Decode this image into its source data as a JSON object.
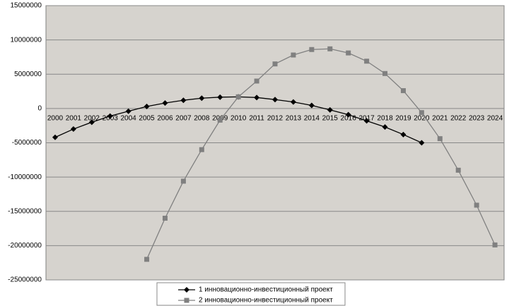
{
  "chart_data": {
    "type": "line",
    "categories": [
      "2000",
      "2001",
      "2002",
      "2003",
      "2004",
      "2005",
      "2006",
      "2007",
      "2008",
      "2009",
      "2010",
      "2011",
      "2012",
      "2013",
      "2014",
      "2015",
      "2016",
      "2017",
      "2018",
      "2019",
      "2020",
      "2021",
      "2022",
      "2023",
      "2024"
    ],
    "series": [
      {
        "name": "1 инновационно-инвестиционный проект",
        "color": "#000000",
        "marker": "diamond",
        "values": [
          -4200000,
          -3000000,
          -2000000,
          -1100000,
          -400000,
          300000,
          800000,
          1200000,
          1500000,
          1650000,
          1700000,
          1600000,
          1300000,
          950000,
          450000,
          -200000,
          -900000,
          -1800000,
          -2700000,
          -3800000,
          -5000000,
          null,
          null,
          null,
          null
        ]
      },
      {
        "name": "2 инновационно-инвестиционный проект",
        "color": "#808080",
        "marker": "square",
        "values": [
          null,
          null,
          null,
          null,
          null,
          -22000000,
          -16000000,
          -10600000,
          -6000000,
          -1700000,
          1700000,
          4000000,
          6500000,
          7800000,
          8600000,
          8700000,
          8100000,
          6900000,
          5100000,
          2600000,
          -600000,
          -4400000,
          -9000000,
          -14100000,
          -19900000
        ]
      }
    ],
    "ylim": [
      -25000000,
      15000000
    ],
    "yticks": [
      -25000000,
      -20000000,
      -15000000,
      -10000000,
      -5000000,
      0,
      5000000,
      10000000,
      15000000
    ],
    "grid": true,
    "legend": "bottom"
  }
}
